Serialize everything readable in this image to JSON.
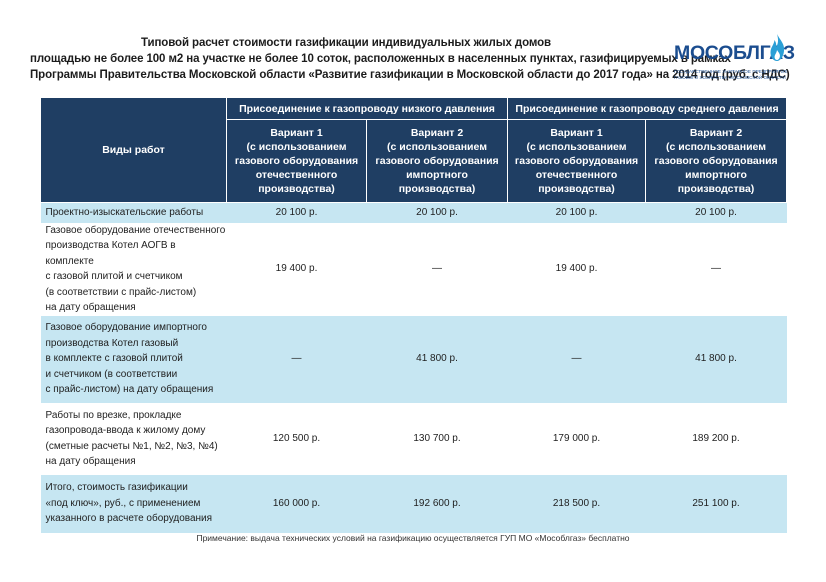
{
  "title": {
    "line1": "Типовой расчет стоимости газификации индивидуальных жилых домов",
    "line2": "площадью не более 100 м2 на участке не более 10 соток, расположенных в населенных пунктах, газифицируемых в рамках",
    "line3": "Программы Правительства Московской области «Развитие газификации в Московской области до 2017 года» на 2014 год (руб. с НДС)"
  },
  "logo": {
    "name": "МОСОБЛГАЗ",
    "sub1": "Государственное унитарное предприятие",
    "sub2": "газового хозяйства Московской области",
    "colors": {
      "text": "#1b4d8f",
      "flame": "#2a9fd6"
    }
  },
  "table": {
    "work_header": "Виды работ",
    "groups": [
      "Присоединение к газопроводу низкого давления",
      "Присоединение к газопроводу среднего давления"
    ],
    "variants": [
      {
        "name": "Вариант 1",
        "l1": "(с использованием",
        "l2": "газового оборудования",
        "l3": "отечественного",
        "l4": "производства)"
      },
      {
        "name": "Вариант 2",
        "l1": "(с использованием",
        "l2": "газового оборудования",
        "l3": "импортного",
        "l4": "производства)"
      },
      {
        "name": "Вариант 1",
        "l1": "(с использованием",
        "l2": "газового оборудования",
        "l3": "отечественного",
        "l4": "производства)"
      },
      {
        "name": "Вариант 2",
        "l1": "(с использованием",
        "l2": "газового оборудования",
        "l3": "импортного",
        "l4": "производства)"
      }
    ],
    "rows": [
      {
        "work": [
          "Проектно-изыскательские работы"
        ],
        "values": [
          "20 100 р.",
          "20 100 р.",
          "20 100 р.",
          "20 100 р."
        ]
      },
      {
        "work": [
          "Газовое оборудование отечественного",
          "производства Котел АОГВ в комплекте",
          "с газовой плитой и счетчиком",
          "(в соответствии с прайс-листом)",
          "на дату обращения"
        ],
        "values": [
          "19 400 р.",
          "—",
          "19 400 р.",
          "—"
        ]
      },
      {
        "work": [
          "Газовое оборудование импортного",
          "производства Котел газовый",
          "в комплекте с газовой плитой",
          "и счетчиком (в соответствии",
          "с прайс-листом) на дату обращения"
        ],
        "values": [
          "—",
          "41 800 р.",
          "—",
          "41 800 р."
        ]
      },
      {
        "work": [
          "Работы по врезке, прокладке",
          "газопровода-ввода к жилому дому",
          "(сметные расчеты №1, №2, №3, №4)",
          "на дату обращения"
        ],
        "values": [
          "120 500 р.",
          "130 700 р.",
          "179 000 р.",
          "189 200 р."
        ]
      },
      {
        "work": [
          "Итого, стоимость газификации",
          "«под ключ», руб., с применением",
          "указанного в расчете оборудования"
        ],
        "values": [
          "160 000 р.",
          "192 600 р.",
          "218 500 р.",
          "251 100 р."
        ]
      }
    ]
  },
  "note": "Примечание: выдача технических условий на газификацию осуществляется ГУП МО «Мособлгаз» бесплатно",
  "colors": {
    "header": "#1f3e63",
    "row_highlight": "#c6e6f2"
  }
}
